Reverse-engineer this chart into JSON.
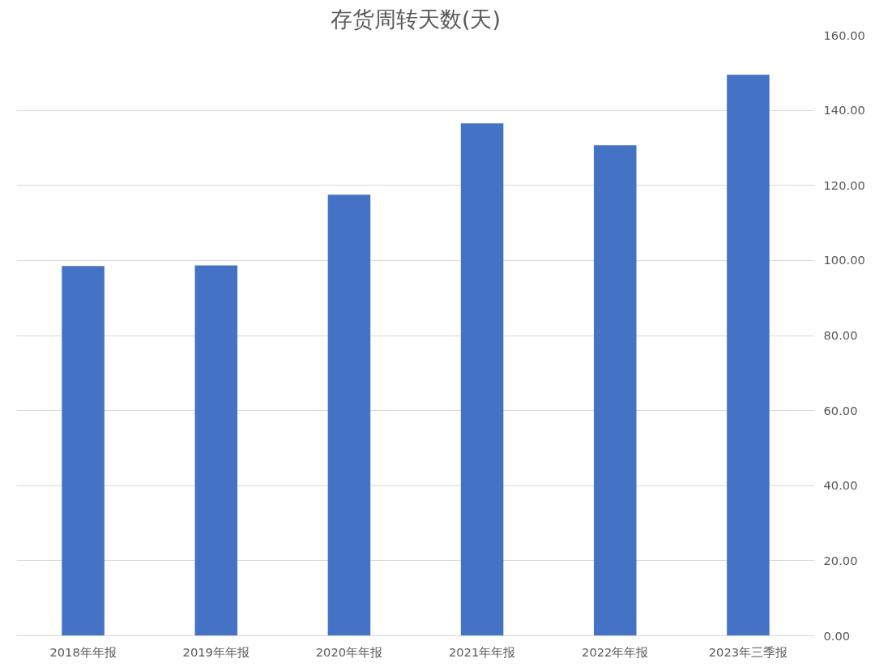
{
  "chart_data": {
    "type": "bar",
    "title": "存货周转天数(天)",
    "categories": [
      "2018年年报",
      "2019年年报",
      "2020年年报",
      "2021年年报",
      "2022年年报",
      "2023年三季报"
    ],
    "values": [
      98.5,
      98.7,
      117.5,
      136.5,
      130.7,
      149.5
    ],
    "color": "#4472c4",
    "ylim": [
      0,
      160
    ],
    "yticks": [
      {
        "value": 0,
        "label": "0.00"
      },
      {
        "value": 20,
        "label": "20.00"
      },
      {
        "value": 40,
        "label": "40.00"
      },
      {
        "value": 60,
        "label": "60.00"
      },
      {
        "value": 80,
        "label": "80.00"
      },
      {
        "value": 100,
        "label": "100.00"
      },
      {
        "value": 120,
        "label": "120.00"
      },
      {
        "value": 140,
        "label": "140.00"
      },
      {
        "value": 160,
        "label": "160.00"
      }
    ],
    "grid": "y"
  }
}
